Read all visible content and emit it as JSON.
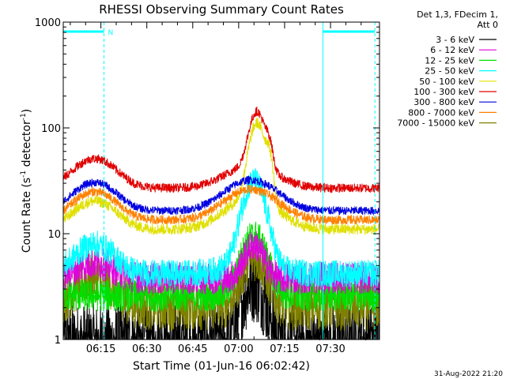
{
  "chart_data": {
    "type": "line",
    "title": "RHESSI Observing Summary Count Rates",
    "xlabel": "Start Time (01-Jun-16 06:02:42)",
    "ylabel_main": "Count Rate (s",
    "ylabel_sup1": "-1",
    "ylabel_mid": " detector",
    "ylabel_sup2": "-1",
    "ylabel_end": ")",
    "y_scale": "log",
    "ylim": [
      1,
      1000
    ],
    "xlim_minutes": [
      362.7,
      466.0
    ],
    "x_tick_labels": [
      "06:15",
      "06:30",
      "06:45",
      "07:00",
      "07:15",
      "07:30"
    ],
    "x_tick_minutes": [
      375,
      390,
      405,
      420,
      435,
      450
    ],
    "y_tick_labels": [
      "1",
      "10",
      "100",
      "1000"
    ],
    "y_tick_values": [
      1,
      10,
      100,
      1000
    ],
    "legend_header": [
      "Det 1,3, FDecim 1,",
      "Att 0"
    ],
    "series": [
      {
        "name": "3 - 6 keV",
        "color": "#000000"
      },
      {
        "name": "6 - 12 keV",
        "color": "#e000e0"
      },
      {
        "name": "12 - 25 keV",
        "color": "#00e000"
      },
      {
        "name": "25 - 50 keV",
        "color": "#00ffff"
      },
      {
        "name": "50 - 100 keV",
        "color": "#e0e000"
      },
      {
        "name": "100 - 300 keV",
        "color": "#e00000"
      },
      {
        "name": "300 - 800 keV",
        "color": "#0000e0"
      },
      {
        "name": "800 - 7000 keV",
        "color": "#ff8000"
      },
      {
        "name": "7000 - 15000 keV",
        "color": "#808000"
      }
    ],
    "marker_label": "N",
    "night_intervals_minutes": [
      [
        362.7,
        376.0
      ],
      [
        447.5,
        464.5
      ]
    ]
  },
  "footer_date": "31-Aug-2022 21:20"
}
